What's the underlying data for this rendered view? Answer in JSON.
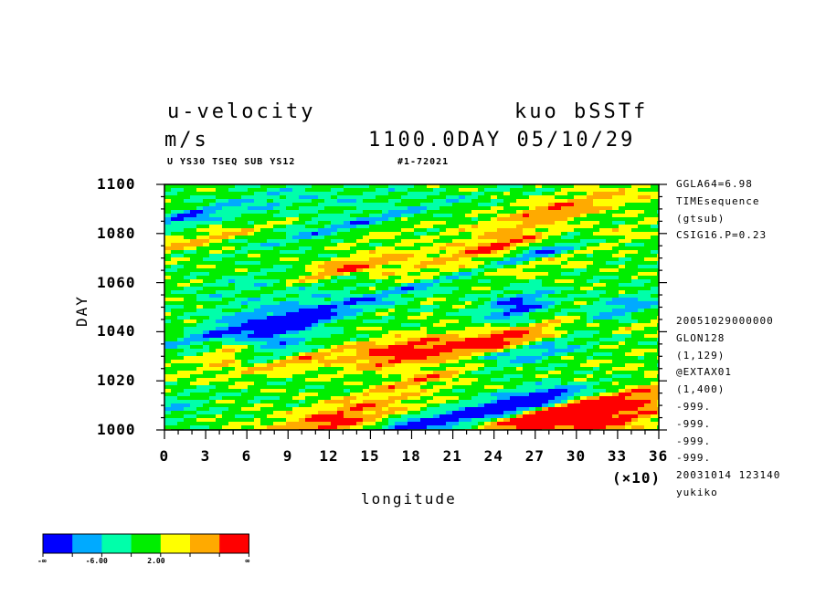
{
  "header": {
    "title_left": "u-velocity",
    "units": "m/s",
    "title_right": "kuo bSSTf",
    "day_date": "1100.0DAY 05/10/29",
    "subtitle_left": "U YS30 TSEQ SUB YS12",
    "subtitle_right": "#1-72021"
  },
  "info_top": [
    "GGLA64=6.98",
    "TIMEsequence",
    "(gtsub)",
    "CSIG16.P=0.23"
  ],
  "info_bottom": [
    "20051029000000",
    "GLON128",
    "(1,129)",
    "@EXTAX01",
    "(1,400)",
    "-999.",
    "-999.",
    "-999.",
    "-999.",
    "20031014 123140",
    "yukiko"
  ],
  "colorbar": {
    "colors": [
      "#0000ff",
      "#00aaff",
      "#00ffaa",
      "#00ee00",
      "#ffff00",
      "#ffaa00",
      "#ff0000"
    ],
    "labels": [
      "-∞",
      "-6.00",
      "2.00",
      "∞"
    ]
  },
  "chart_data": {
    "type": "heatmap",
    "title": "u-velocity",
    "xlabel": "longitude",
    "ylabel": "DAY",
    "x_scale_note": "(×10)",
    "xlim": [
      0,
      36
    ],
    "ylim": [
      1000,
      1100
    ],
    "x_ticks": [
      "0",
      "3",
      "6",
      "9",
      "12",
      "15",
      "18",
      "21",
      "24",
      "27",
      "30",
      "33",
      "36"
    ],
    "y_ticks": [
      "1000",
      "1020",
      "1040",
      "1060",
      "1080",
      "1100"
    ],
    "units": "m/s",
    "palette": [
      "#0000ff",
      "#00aaff",
      "#00ffaa",
      "#00ee00",
      "#ffff00",
      "#ffaa00",
      "#ff0000"
    ]
  }
}
